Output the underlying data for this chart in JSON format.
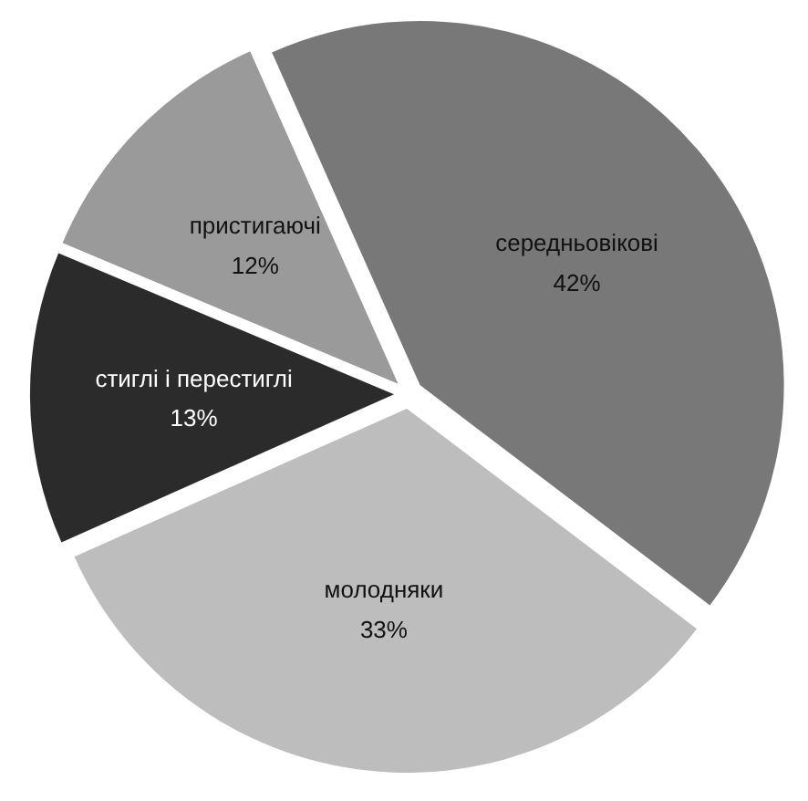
{
  "chart_data": {
    "type": "pie",
    "categories": [
      "середньовікові",
      "молодняки",
      "стиглі і перестиглі",
      "пристигаючі"
    ],
    "values": [
      42,
      33,
      13,
      12
    ],
    "value_labels": [
      "42%",
      "33%",
      "13%",
      "12%"
    ],
    "colors": [
      "#787878",
      "#bdbdbd",
      "#2b2b2b",
      "#9a9a9a"
    ]
  }
}
